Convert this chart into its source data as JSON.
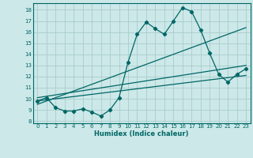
{
  "xlabel": "Humidex (Indice chaleur)",
  "bg_color": "#cce8e8",
  "grid_color": "#aacccc",
  "line_color": "#006666",
  "xlim": [
    -0.5,
    23.5
  ],
  "ylim": [
    7.8,
    18.6
  ],
  "xticks": [
    0,
    1,
    2,
    3,
    4,
    5,
    6,
    7,
    8,
    9,
    10,
    11,
    12,
    13,
    14,
    15,
    16,
    17,
    18,
    19,
    20,
    21,
    22,
    23
  ],
  "yticks": [
    8,
    9,
    10,
    11,
    12,
    13,
    14,
    15,
    16,
    17,
    18
  ],
  "line1_x": [
    0,
    1,
    2,
    3,
    4,
    5,
    6,
    7,
    8,
    9,
    10,
    11,
    12,
    13,
    14,
    15,
    16,
    17,
    18,
    19,
    20,
    21,
    22,
    23
  ],
  "line1_y": [
    9.8,
    10.1,
    9.2,
    8.9,
    8.9,
    9.1,
    8.8,
    8.45,
    9.0,
    10.1,
    13.3,
    15.8,
    16.9,
    16.3,
    15.8,
    17.0,
    18.2,
    17.85,
    16.2,
    14.1,
    12.2,
    11.5,
    12.2,
    12.7
  ],
  "line2_x": [
    0,
    23
  ],
  "line2_y": [
    9.5,
    16.4
  ],
  "line3_x": [
    0,
    23
  ],
  "line3_y": [
    9.8,
    12.1
  ],
  "line4_x": [
    0,
    23
  ],
  "line4_y": [
    10.1,
    13.0
  ]
}
